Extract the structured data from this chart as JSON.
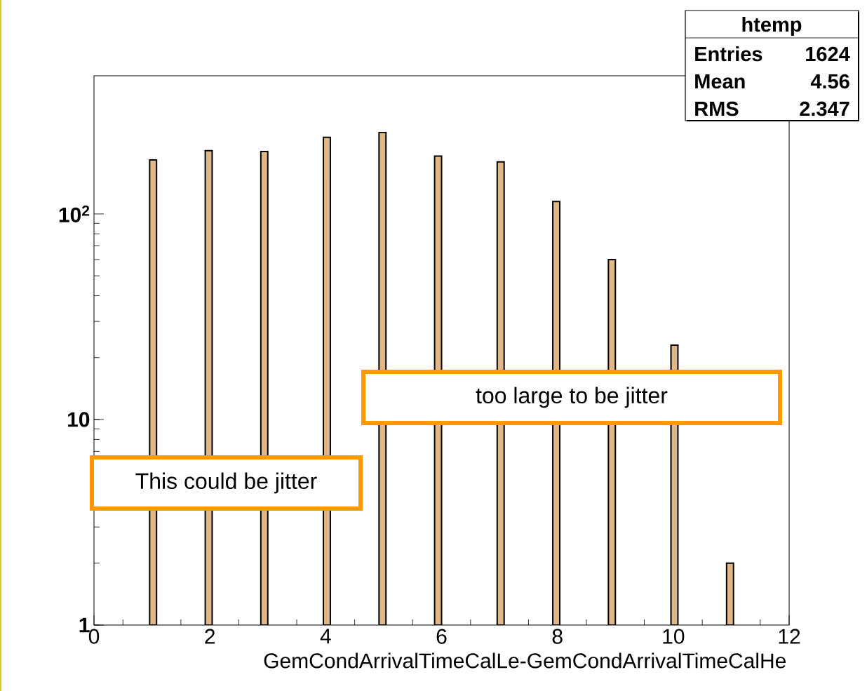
{
  "chart_data": {
    "type": "bar",
    "xlabel": "GemCondArrivalTimeCalLe-GemCondArrivalTimeCalHe",
    "x": [
      1.02,
      1.98,
      2.94,
      4.02,
      4.98,
      5.94,
      7.02,
      7.98,
      8.94,
      10.02,
      10.98
    ],
    "values": [
      183,
      203,
      201,
      236,
      249,
      191,
      179,
      115,
      60,
      23,
      2
    ],
    "color": "#deb887",
    "xlim": [
      0,
      12
    ],
    "ylim": [
      1,
      470
    ],
    "xticks": [
      0,
      2,
      4,
      6,
      8,
      10,
      12
    ],
    "yticks": [
      {
        "value": 1,
        "label": "1"
      },
      {
        "value": 10,
        "label": "10"
      },
      {
        "value": 100,
        "label": "10$^{2}$"
      }
    ],
    "log": true,
    "annotations": [
      "htemp",
      "Entries",
      "1624",
      "Mean",
      "4.56",
      "RMS",
      "2.347",
      "This could be jitter",
      "too large to be jitter"
    ]
  }
}
